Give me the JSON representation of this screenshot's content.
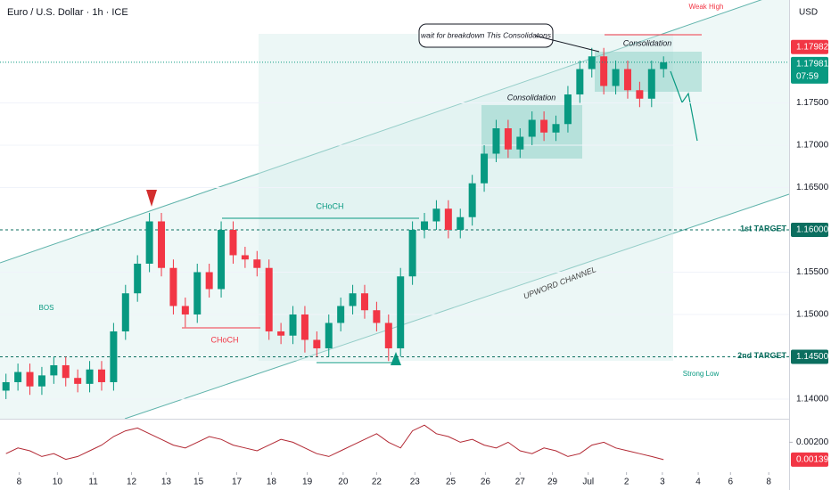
{
  "chart_data": [
    {
      "type": "candlestick",
      "title": "Euro / U.S. Dollar · 1h · ICE",
      "currency": "USD",
      "colors": {
        "up": "#089981",
        "down": "#f23645"
      },
      "x": [
        1,
        2,
        3,
        4,
        5,
        6,
        7,
        8,
        9,
        10,
        11,
        12,
        13,
        14,
        15,
        16,
        17,
        18,
        19,
        20,
        21,
        22,
        23,
        24,
        25,
        26,
        27,
        28,
        29,
        30,
        31,
        32,
        33,
        34,
        35,
        36,
        37,
        38,
        39,
        40,
        41,
        42,
        43,
        44,
        45,
        46,
        47,
        48,
        49,
        50,
        51,
        52,
        53,
        54,
        55,
        56
      ],
      "open": [
        1.141,
        1.142,
        1.1432,
        1.1415,
        1.1428,
        1.144,
        1.1425,
        1.1418,
        1.1435,
        1.142,
        1.148,
        1.1525,
        1.156,
        1.161,
        1.1555,
        1.151,
        1.15,
        1.155,
        1.153,
        1.16,
        1.157,
        1.1565,
        1.1555,
        1.148,
        1.1475,
        1.15,
        1.147,
        1.146,
        1.149,
        1.151,
        1.1525,
        1.1505,
        1.149,
        1.146,
        1.1545,
        1.16,
        1.161,
        1.1625,
        1.16,
        1.1615,
        1.1655,
        1.169,
        1.172,
        1.1695,
        1.171,
        1.173,
        1.1715,
        1.1725,
        1.176,
        1.179,
        1.1805,
        1.177,
        1.179,
        1.1765,
        1.1755,
        1.179
      ],
      "high": [
        1.143,
        1.1442,
        1.1442,
        1.1438,
        1.145,
        1.145,
        1.1435,
        1.1445,
        1.1445,
        1.149,
        1.1535,
        1.157,
        1.162,
        1.162,
        1.1565,
        1.152,
        1.156,
        1.156,
        1.161,
        1.161,
        1.158,
        1.1575,
        1.1565,
        1.149,
        1.151,
        1.151,
        1.148,
        1.15,
        1.152,
        1.1535,
        1.1535,
        1.1515,
        1.15,
        1.1555,
        1.161,
        1.162,
        1.1635,
        1.1635,
        1.1625,
        1.1665,
        1.17,
        1.173,
        1.173,
        1.172,
        1.174,
        1.174,
        1.1735,
        1.177,
        1.18,
        1.1815,
        1.1815,
        1.18,
        1.18,
        1.1775,
        1.18,
        1.1805
      ],
      "low": [
        1.14,
        1.141,
        1.1405,
        1.1405,
        1.1418,
        1.1415,
        1.1408,
        1.1408,
        1.141,
        1.141,
        1.147,
        1.1515,
        1.155,
        1.1545,
        1.15,
        1.1485,
        1.149,
        1.152,
        1.152,
        1.156,
        1.1555,
        1.1545,
        1.147,
        1.1465,
        1.1465,
        1.1455,
        1.145,
        1.145,
        1.148,
        1.15,
        1.1495,
        1.148,
        1.1445,
        1.145,
        1.1535,
        1.159,
        1.16,
        1.159,
        1.159,
        1.1605,
        1.1645,
        1.168,
        1.1685,
        1.1685,
        1.17,
        1.1705,
        1.1705,
        1.1715,
        1.175,
        1.178,
        1.176,
        1.176,
        1.1755,
        1.1745,
        1.1745,
        1.178
      ],
      "close": [
        1.142,
        1.1432,
        1.1415,
        1.1428,
        1.144,
        1.1425,
        1.1418,
        1.1435,
        1.142,
        1.148,
        1.1525,
        1.156,
        1.161,
        1.1555,
        1.151,
        1.15,
        1.155,
        1.153,
        1.16,
        1.157,
        1.1565,
        1.1555,
        1.148,
        1.1475,
        1.15,
        1.147,
        1.146,
        1.149,
        1.151,
        1.1525,
        1.1505,
        1.149,
        1.146,
        1.1545,
        1.16,
        1.161,
        1.1625,
        1.16,
        1.1615,
        1.1655,
        1.169,
        1.172,
        1.1695,
        1.171,
        1.173,
        1.1715,
        1.1725,
        1.176,
        1.179,
        1.1805,
        1.177,
        1.179,
        1.1765,
        1.1755,
        1.179,
        1.1798
      ],
      "xlim": [
        0.5,
        66.5
      ],
      "xticks": [
        {
          "value": 2.1,
          "label": "8"
        },
        {
          "value": 5.3,
          "label": "10"
        },
        {
          "value": 8.3,
          "label": "11"
        },
        {
          "value": 11.5,
          "label": "12"
        },
        {
          "value": 14.4,
          "label": "13"
        },
        {
          "value": 17.1,
          "label": "15"
        },
        {
          "value": 20.3,
          "label": "17"
        },
        {
          "value": 23.2,
          "label": "18"
        },
        {
          "value": 26.2,
          "label": "19"
        },
        {
          "value": 29.2,
          "label": "20"
        },
        {
          "value": 32,
          "label": "22"
        },
        {
          "value": 35.2,
          "label": "23"
        },
        {
          "value": 38.2,
          "label": "25"
        },
        {
          "value": 41.1,
          "label": "26"
        },
        {
          "value": 44,
          "label": "27"
        },
        {
          "value": 46.7,
          "label": "29"
        },
        {
          "value": 49.7,
          "label": "Jul"
        },
        {
          "value": 52.9,
          "label": "2"
        },
        {
          "value": 55.9,
          "label": "3"
        },
        {
          "value": 58.9,
          "label": "4"
        },
        {
          "value": 61.6,
          "label": "6"
        },
        {
          "value": 64.8,
          "label": "8"
        }
      ],
      "ylim": [
        1.13768,
        1.18716
      ],
      "yticks": [
        {
          "value": 1.14,
          "label": "1.14000"
        },
        {
          "value": 1.15,
          "label": "1.15000"
        },
        {
          "value": 1.155,
          "label": "1.15500"
        },
        {
          "value": 1.165,
          "label": "1.16500"
        },
        {
          "value": 1.17,
          "label": "1.17000"
        },
        {
          "value": 1.175,
          "label": "1.17500"
        }
      ],
      "levels": [
        {
          "value": 1.16,
          "label": "1.16000",
          "name": "1st TARGET"
        },
        {
          "value": 1.145,
          "label": "1.14500",
          "name": "2nd TARGET"
        }
      ],
      "price_tags": [
        {
          "value": 1.17982,
          "label": "1.17982",
          "color": "#f23645"
        },
        {
          "value": 1.17981,
          "label": "1.17981",
          "color": "#089981"
        }
      ],
      "countdown": "07:59",
      "annotations": {
        "callout": "wait for breakdown This Consolidatons",
        "consolidation_1": "Consolidation",
        "consolidation_2": "Consolidation",
        "choch_1": "CHoCH",
        "choch_2": "CHoCH",
        "channel": "UPWORD CHANNEL",
        "bos": "BOS",
        "strong_low": "Strong Low",
        "weak_high": "Weak High"
      }
    },
    {
      "type": "line",
      "color": "#b22833",
      "x": [
        1,
        2,
        3,
        4,
        5,
        6,
        7,
        8,
        9,
        10,
        11,
        12,
        13,
        14,
        15,
        16,
        17,
        18,
        19,
        20,
        21,
        22,
        23,
        24,
        25,
        26,
        27,
        28,
        29,
        30,
        31,
        32,
        33,
        34,
        35,
        36,
        37,
        38,
        39,
        40,
        41,
        42,
        43,
        44,
        45,
        46,
        47,
        48,
        49,
        50,
        51,
        52,
        53,
        54,
        55,
        56
      ],
      "values": [
        0.0016,
        0.0018,
        0.0017,
        0.0015,
        0.0016,
        0.0014,
        0.0015,
        0.0017,
        0.0019,
        0.0022,
        0.0024,
        0.0025,
        0.0023,
        0.0021,
        0.0019,
        0.0018,
        0.002,
        0.0022,
        0.0021,
        0.0019,
        0.0018,
        0.0017,
        0.0019,
        0.0021,
        0.002,
        0.0018,
        0.0016,
        0.0015,
        0.0017,
        0.0019,
        0.0021,
        0.0023,
        0.002,
        0.0018,
        0.0024,
        0.0026,
        0.0023,
        0.0022,
        0.002,
        0.0021,
        0.0019,
        0.0018,
        0.002,
        0.0017,
        0.0016,
        0.0018,
        0.0017,
        0.0015,
        0.0016,
        0.0019,
        0.002,
        0.0018,
        0.0017,
        0.0016,
        0.0015,
        0.00139
      ],
      "last_label": "0.00139",
      "xlim": [
        0.5,
        66.5
      ],
      "ylim": [
        0.00095,
        0.0027
      ],
      "yticks": [
        {
          "value": 0.002,
          "label": "0.00200"
        }
      ]
    }
  ]
}
